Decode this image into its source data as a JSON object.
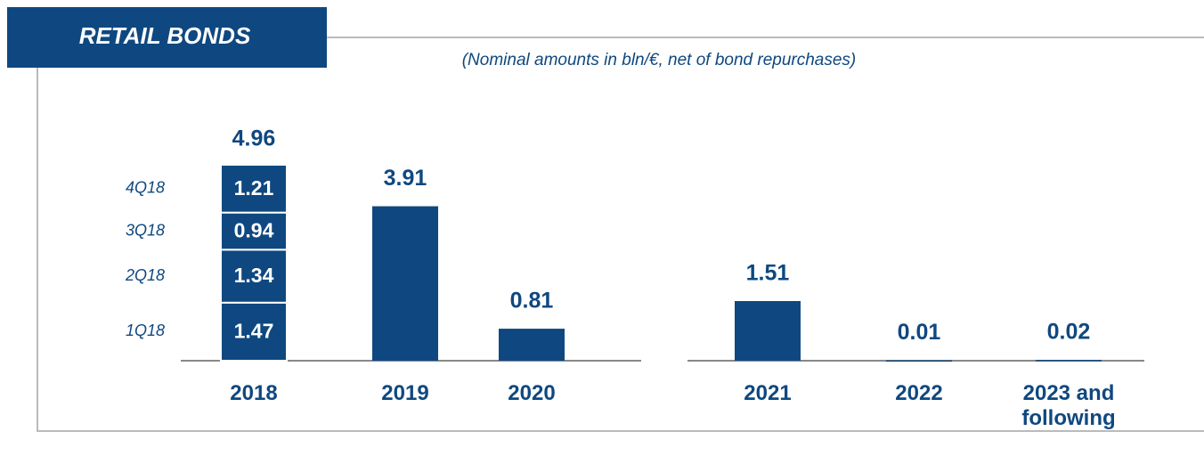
{
  "chart_data": {
    "type": "bar",
    "title": "RETAIL BONDS",
    "subtitle": "(Nominal amounts in bln/€, net of bond repurchases)",
    "categories": [
      "2018",
      "2019",
      "2020",
      "2021",
      "2022",
      "2023 and following"
    ],
    "stacked": true,
    "series": [
      {
        "name": "1Q18",
        "color": "#0f4880",
        "values": [
          1.47,
          null,
          null,
          null,
          null,
          null
        ]
      },
      {
        "name": "2Q18",
        "color": "#0f4880",
        "values": [
          1.34,
          null,
          null,
          null,
          null,
          null
        ]
      },
      {
        "name": "3Q18",
        "color": "#0f4880",
        "values": [
          0.94,
          null,
          null,
          null,
          null,
          null
        ]
      },
      {
        "name": "4Q18",
        "color": "#0f4880",
        "values": [
          1.21,
          null,
          null,
          null,
          null,
          null
        ]
      },
      {
        "color": "#0f4880",
        "values": [
          null,
          3.91,
          0.81,
          1.51,
          0.01,
          0.02
        ]
      }
    ],
    "totals": [
      4.96,
      null,
      null,
      null,
      null,
      null
    ]
  }
}
